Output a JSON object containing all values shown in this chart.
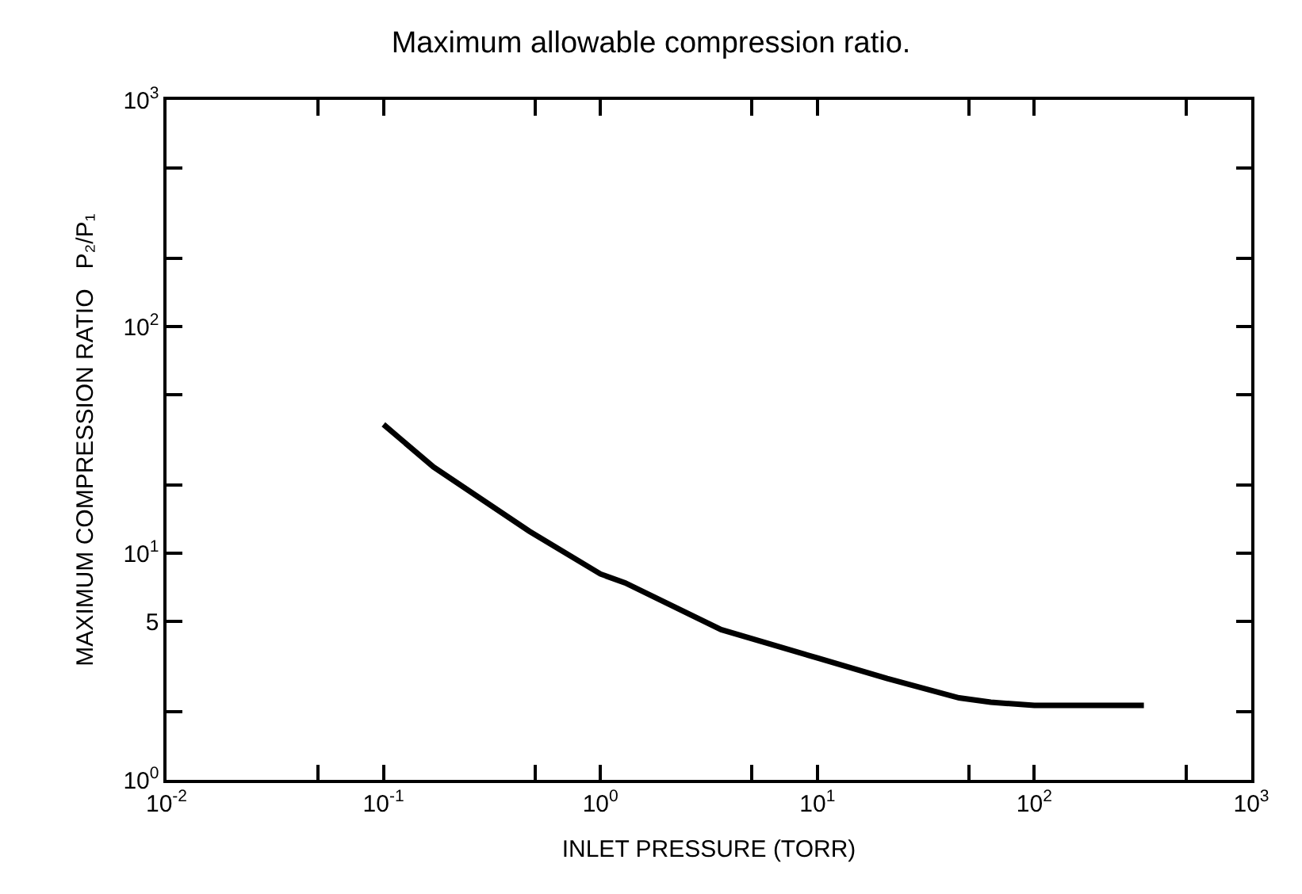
{
  "chart_data": {
    "type": "line",
    "title": "Maximum allowable compression ratio.",
    "xlabel": "INLET PRESSURE (TORR)",
    "ylabel": "MAXIMUM COMPRESSION RATIO   P₂/P₁",
    "log": "xy",
    "xlim": [
      0.01,
      1000
    ],
    "ylim": [
      1,
      1000
    ],
    "xticks": [
      {
        "value": 0.01,
        "label": "10$^{-2}$"
      },
      {
        "value": 0.05,
        "label": null
      },
      {
        "value": 0.1,
        "label": "10$^{-1}$"
      },
      {
        "value": 0.5,
        "label": null
      },
      {
        "value": 1,
        "label": "10$^{0}$"
      },
      {
        "value": 5,
        "label": null
      },
      {
        "value": 10,
        "label": "10$^{1}$"
      },
      {
        "value": 50,
        "label": null
      },
      {
        "value": 100,
        "label": "10$^{2}$"
      },
      {
        "value": 500,
        "label": null
      },
      {
        "value": 1000,
        "label": "10$^{3}$"
      }
    ],
    "yticks": [
      {
        "value": 1,
        "label": "10$^{0}$"
      },
      {
        "value": 2,
        "label": null
      },
      {
        "value": 5,
        "label": "5"
      },
      {
        "value": 10,
        "label": "10$^{1}$"
      },
      {
        "value": 20,
        "label": null
      },
      {
        "value": 50,
        "label": null
      },
      {
        "value": 100,
        "label": "10$^{2}$"
      },
      {
        "value": 200,
        "label": null
      },
      {
        "value": 500,
        "label": null
      },
      {
        "value": 1000,
        "label": "10$^{3}$"
      }
    ],
    "marker": "none",
    "line_style": "solid",
    "series": [
      {
        "color": "#000000",
        "x": [
          0.1,
          0.17,
          0.47,
          1,
          1.3,
          3.6,
          10,
          21,
          45,
          63,
          100,
          320
        ],
        "values": [
          37,
          24,
          12.5,
          8.1,
          7.4,
          4.6,
          3.45,
          2.8,
          2.3,
          2.2,
          2.13,
          2.13
        ]
      }
    ]
  }
}
